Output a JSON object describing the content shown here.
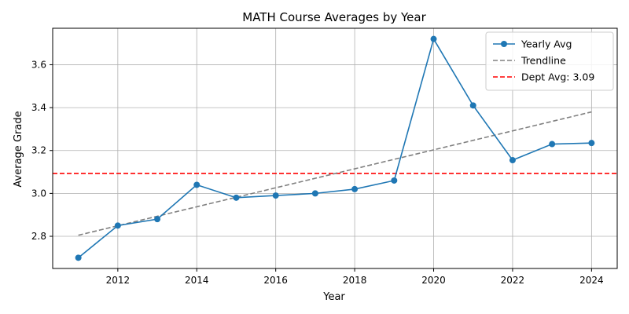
{
  "chart_data": {
    "type": "line",
    "title": "MATH Course Averages by Year",
    "xlabel": "Year",
    "ylabel": "Average Grade",
    "xlim": [
      2010.35,
      2024.65
    ],
    "ylim": [
      2.65,
      3.77
    ],
    "xticks": [
      2012,
      2014,
      2016,
      2018,
      2020,
      2022,
      2024
    ],
    "yticks": [
      2.8,
      3.0,
      3.2,
      3.4,
      3.6
    ],
    "ytick_labels": [
      "2.8",
      "3.0",
      "3.2",
      "3.4",
      "3.6"
    ],
    "grid": true,
    "legend_position": "top-right",
    "series": [
      {
        "name": "Yearly Avg",
        "style": "solid-markers",
        "color": "#1f77b4",
        "x": [
          2011,
          2012,
          2013,
          2014,
          2015,
          2016,
          2017,
          2018,
          2019,
          2020,
          2021,
          2022,
          2023,
          2024
        ],
        "y": [
          2.7,
          2.85,
          2.88,
          3.04,
          2.98,
          2.99,
          3.0,
          3.02,
          3.06,
          3.72,
          3.41,
          3.155,
          3.23,
          3.235
        ]
      },
      {
        "name": "Trendline",
        "style": "dashed",
        "color": "#808080",
        "x": [
          2011,
          2024
        ],
        "y": [
          2.805,
          3.38
        ]
      }
    ],
    "reference_line": {
      "name": "Dept Avg: 3.09",
      "value": 3.093,
      "color": "#ff0000",
      "style": "dashed"
    }
  }
}
